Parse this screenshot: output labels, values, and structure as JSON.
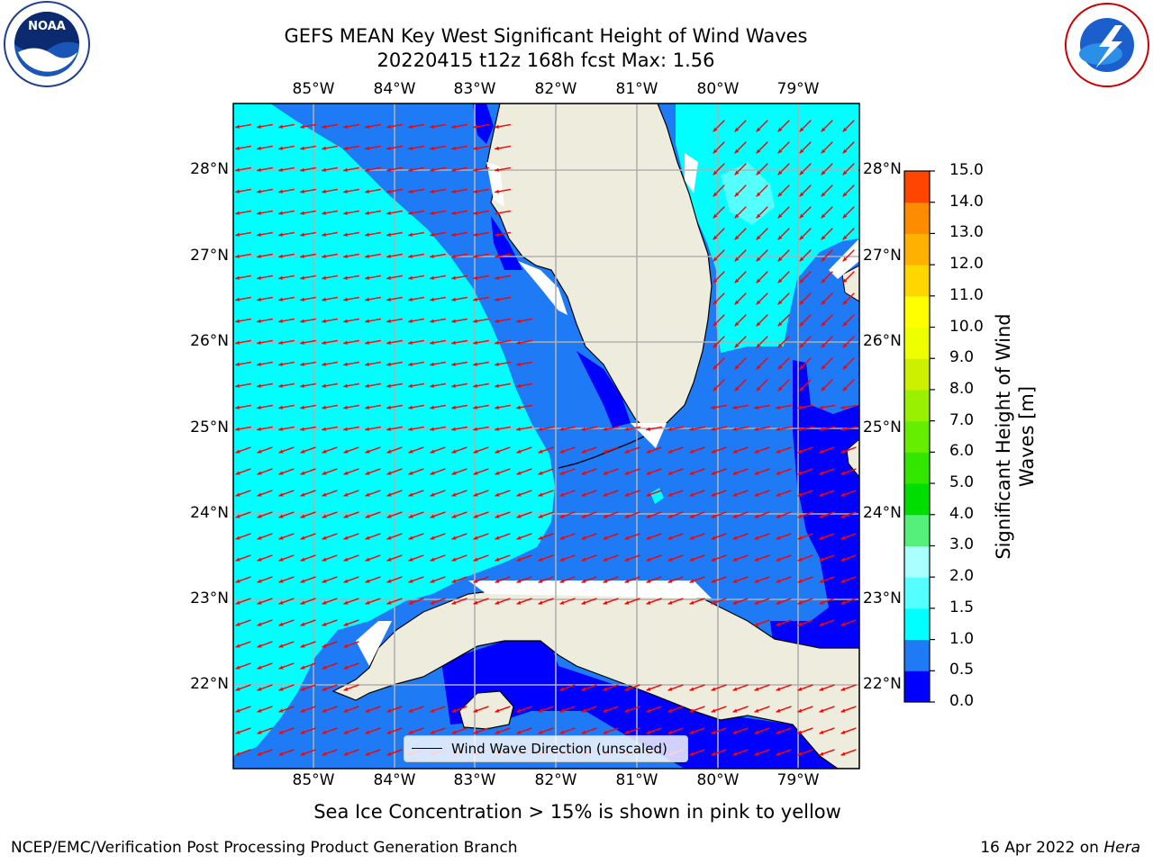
{
  "title_line1": "GEFS MEAN Key West Significant Height of Wind Waves",
  "title_line2": "20220415 t12z 168h fcst   Max: 1.56",
  "lon_labels": [
    "85°W",
    "84°W",
    "83°W",
    "82°W",
    "81°W",
    "80°W",
    "79°W"
  ],
  "lat_labels": [
    "28°N",
    "27°N",
    "26°N",
    "25°N",
    "24°N",
    "23°N",
    "22°N"
  ],
  "legend": "Wind Wave Direction (unscaled)",
  "colorbar": {
    "title_line1": "Significant Height of Wind",
    "title_line2": "Waves [m]",
    "ticks": [
      "15.0",
      "14.0",
      "13.0",
      "12.0",
      "11.0",
      "10.0",
      "9.0",
      "8.0",
      "7.0",
      "6.0",
      "5.0",
      "4.0",
      "3.0",
      "2.0",
      "1.5",
      "1.0",
      "0.5",
      "0.0"
    ],
    "colors": [
      "#0000ff",
      "#1e7af5",
      "#00ffff",
      "#55ffff",
      "#aaffff",
      "#55f07a",
      "#00dd00",
      "#33e600",
      "#66ee00",
      "#99f000",
      "#ccf000",
      "#eeff00",
      "#ffff00",
      "#ffd700",
      "#ffb000",
      "#ff8c00",
      "#ff4500",
      "#ff0000"
    ]
  },
  "caption": "Sea Ice Concentration > 15% is shown in pink to yellow",
  "footer_left": "NCEP/EMC/Verification Post Processing Product Generation Branch",
  "footer_date": "16 Apr 2022 on",
  "footer_machine": "Hera",
  "logos": {
    "left": "NOAA",
    "right": "NATIONAL WEATHER SERVICE"
  },
  "colors": {
    "land": "#eeecdc",
    "arrow": "#ff0000",
    "grid": "#b0b0b0"
  }
}
